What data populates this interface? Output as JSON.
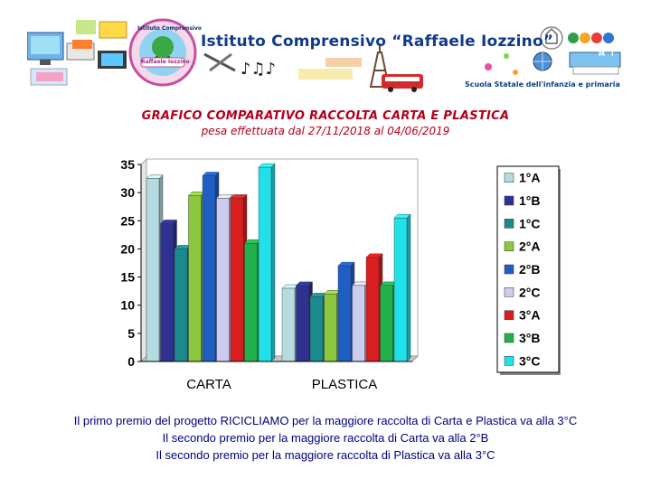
{
  "banner": {
    "title": "Istituto Comprensivo “Raffaele Iozzino”",
    "subtitle": "Scuola Statale dell'infanzia e primaria",
    "logo_top_text": "Istituto Comprensivo",
    "logo_bottom_text": "Raffaele Iozzino",
    "miur_letters": [
      "M",
      "I",
      "U",
      "R"
    ],
    "icons": [
      "computer-icon",
      "school-logo-icon",
      "music-notes-icon",
      "eiffel-tower-icon",
      "bus-icon",
      "italian-emblem-icon",
      "miur-logo-icon",
      "globe-icon",
      "books-icon"
    ]
  },
  "page": {
    "title": "GRAFICO COMPARATIVO RACCOLTA CARTA E PLASTICA",
    "subtitle": "pesa effettuata dal 27/11/2018 al 04/06/2019"
  },
  "footer": {
    "line1": "Il primo premio del progetto RICICLIAMO per la maggiore raccolta di Carta e Plastica va alla 3°C",
    "line2": "Il secondo premio per la maggiore raccolta di Carta va alla 2°B",
    "line3": "Il secondo premio per la maggiore raccolta di Plastica va alla 3°C"
  },
  "chart_data": {
    "type": "bar",
    "style": "3d-clustered",
    "categories": [
      "CARTA",
      "PLASTICA"
    ],
    "ylim": [
      0,
      35
    ],
    "yticks": [
      0,
      5,
      10,
      15,
      20,
      25,
      30,
      35
    ],
    "grid": false,
    "legend_position": "right",
    "series": [
      {
        "name": "1°A",
        "color": "#b5dbe0",
        "values": [
          32.5,
          13
        ]
      },
      {
        "name": "1°B",
        "color": "#2e3192",
        "values": [
          24.5,
          13.5
        ]
      },
      {
        "name": "1°C",
        "color": "#1b8a8f",
        "values": [
          20,
          11.5
        ]
      },
      {
        "name": "2°A",
        "color": "#8dc63f",
        "values": [
          29.5,
          12
        ]
      },
      {
        "name": "2°B",
        "color": "#1f5fc4",
        "values": [
          33,
          17
        ]
      },
      {
        "name": "2°C",
        "color": "#ccccf0",
        "values": [
          29,
          13.5
        ]
      },
      {
        "name": "3°A",
        "color": "#d81e1e",
        "values": [
          29,
          18.5
        ]
      },
      {
        "name": "3°B",
        "color": "#22b24c",
        "values": [
          21,
          13.5
        ]
      },
      {
        "name": "3°C",
        "color": "#22e0e8",
        "values": [
          34.5,
          25.5
        ]
      }
    ]
  }
}
